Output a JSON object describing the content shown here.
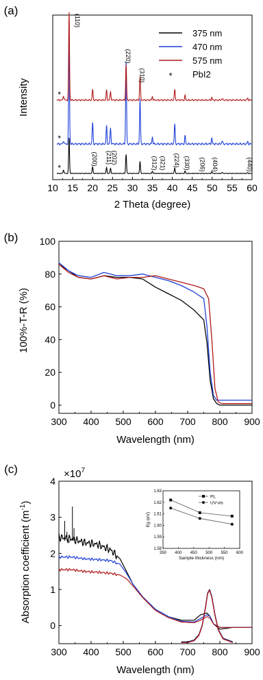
{
  "chart_data": [
    {
      "panel": "(a)",
      "type": "line",
      "xlabel": "2 Theta (degree)",
      "ylabel": "Intensity",
      "xlim": [
        10,
        60
      ],
      "xticks": [
        "10",
        "15",
        "20",
        "25",
        "30",
        "35",
        "40",
        "45",
        "50",
        "55",
        "60"
      ],
      "legend_placement": "top-right",
      "legend": [
        {
          "label": "375 nm",
          "color": "#000000"
        },
        {
          "label": "470 nm",
          "color": "#1f3fd6"
        },
        {
          "label": "575 nm",
          "color": "#b01818"
        },
        {
          "label": "PbI2",
          "marker": "*"
        }
      ],
      "series": [
        {
          "name": "375 nm",
          "color": "#000000",
          "peaks": [
            [
              12.7,
              0.1
            ],
            [
              14.1,
              1.0
            ],
            [
              20.0,
              0.18
            ],
            [
              23.5,
              0.16
            ],
            [
              24.5,
              0.14
            ],
            [
              28.4,
              0.53
            ],
            [
              31.9,
              0.34
            ],
            [
              35.0,
              0.06
            ],
            [
              40.6,
              0.15
            ],
            [
              43.2,
              0.06
            ],
            [
              49.9,
              0.05
            ],
            [
              52.5,
              0.03
            ],
            [
              58.9,
              0.02
            ]
          ]
        },
        {
          "name": "470 nm",
          "color": "#1f3fd6",
          "peaks": [
            [
              12.7,
              0.03
            ],
            [
              14.1,
              1.0
            ],
            [
              20.0,
              0.19
            ],
            [
              23.5,
              0.16
            ],
            [
              24.5,
              0.14
            ],
            [
              28.4,
              0.74
            ],
            [
              31.9,
              0.41
            ],
            [
              35.0,
              0.06
            ],
            [
              40.6,
              0.18
            ],
            [
              43.2,
              0.07
            ],
            [
              49.9,
              0.05
            ],
            [
              52.5,
              0.03
            ],
            [
              58.9,
              0.02
            ]
          ]
        },
        {
          "name": "575 nm",
          "color": "#b01818",
          "peaks": [
            [
              12.7,
              0.05
            ],
            [
              14.1,
              1.0
            ],
            [
              20.0,
              0.12
            ],
            [
              23.5,
              0.11
            ],
            [
              24.5,
              0.09
            ],
            [
              28.4,
              0.4
            ],
            [
              31.9,
              0.27
            ],
            [
              35.0,
              0.04
            ],
            [
              40.6,
              0.12
            ],
            [
              43.2,
              0.05
            ],
            [
              49.9,
              0.03
            ],
            [
              52.5,
              0.02
            ],
            [
              58.9,
              0.02
            ]
          ]
        }
      ],
      "annotations": [
        {
          "text": "(110)",
          "x": 14.1,
          "trace": "575 nm"
        },
        {
          "text": "(220)",
          "x": 28.4,
          "trace": "575 nm"
        },
        {
          "text": "(310)",
          "x": 31.9,
          "trace": "575 nm"
        },
        {
          "text": "(200)",
          "x": 20.0,
          "trace": "375 nm"
        },
        {
          "text": "(211)",
          "x": 23.6,
          "trace": "375 nm"
        },
        {
          "text": "(202)",
          "x": 24.6,
          "trace": "375 nm"
        },
        {
          "text": "(312)",
          "x": 35.0,
          "trace": "375 nm"
        },
        {
          "text": "(321)",
          "x": 36.7,
          "trace": "375 nm"
        },
        {
          "text": "(224)",
          "x": 40.6,
          "trace": "375 nm"
        },
        {
          "text": "(330)",
          "x": 43.2,
          "trace": "375 nm"
        },
        {
          "text": "(206)",
          "x": 47.0,
          "trace": "375 nm"
        },
        {
          "text": "(404)",
          "x": 50.2,
          "trace": "375 nm"
        },
        {
          "text": "(440)",
          "x": 58.9,
          "trace": "375 nm"
        },
        {
          "text": "*",
          "x": 12.7,
          "trace": "375 nm"
        },
        {
          "text": "*",
          "x": 12.7,
          "trace": "470 nm"
        },
        {
          "text": "*",
          "x": 12.7,
          "trace": "575 nm"
        }
      ]
    },
    {
      "panel": "(b)",
      "type": "line",
      "xlabel": "Wavelength (nm)",
      "ylabel": "100%-T-R (%)",
      "xlim": [
        300,
        900
      ],
      "ylim": [
        -5,
        100
      ],
      "xticks": [
        "300",
        "400",
        "500",
        "600",
        "700",
        "800",
        "900"
      ],
      "yticks": [
        "0",
        "20",
        "40",
        "60",
        "80",
        "100"
      ],
      "series": [
        {
          "name": "375 nm",
          "color": "#000000",
          "x": [
            300,
            330,
            360,
            400,
            440,
            480,
            520,
            560,
            600,
            640,
            680,
            720,
            750,
            760,
            770,
            780,
            790,
            800,
            850,
            900
          ],
          "y": [
            86,
            82,
            78,
            77,
            79,
            78,
            78,
            77,
            72,
            68,
            64,
            58,
            52,
            38,
            15,
            4,
            1,
            0,
            0,
            0
          ]
        },
        {
          "name": "470 nm",
          "color": "#1f3fd6",
          "x": [
            300,
            330,
            360,
            400,
            440,
            480,
            520,
            560,
            600,
            640,
            680,
            720,
            750,
            760,
            770,
            780,
            790,
            800,
            850,
            900
          ],
          "y": [
            87,
            82,
            79,
            78,
            81,
            79,
            79,
            80,
            78,
            76,
            73,
            69,
            65,
            48,
            20,
            6,
            3,
            3,
            3,
            3
          ]
        },
        {
          "name": "575 nm",
          "color": "#b01818",
          "x": [
            300,
            330,
            360,
            400,
            440,
            480,
            520,
            560,
            600,
            640,
            680,
            720,
            750,
            765,
            775,
            785,
            795,
            805,
            850,
            900
          ],
          "y": [
            86,
            81,
            78,
            77,
            79,
            77,
            78,
            78,
            79,
            77,
            75,
            73,
            71,
            65,
            40,
            10,
            2,
            1,
            1,
            1
          ]
        }
      ]
    },
    {
      "panel": "(c)",
      "type": "line",
      "xlabel": "Wavelength (nm)",
      "ylabel": "Absorption coefficient (m-1)",
      "multiplier": "×10^7",
      "xlim": [
        300,
        900
      ],
      "ylim": [
        -0.5,
        4
      ],
      "xticks": [
        "300",
        "400",
        "500",
        "600",
        "700",
        "800",
        "900"
      ],
      "yticks": [
        "0",
        "1",
        "2",
        "3",
        "4"
      ],
      "series": [
        {
          "name": "375 nm",
          "color": "#000000",
          "x": [
            300,
            340,
            380,
            420,
            460,
            490,
            510,
            530,
            560,
            600,
            640,
            680,
            720,
            740,
            760,
            770,
            780,
            800,
            840,
            900
          ],
          "y": [
            2.45,
            2.4,
            2.3,
            2.25,
            2.1,
            1.85,
            1.5,
            1.15,
            0.8,
            0.45,
            0.25,
            0.15,
            0.15,
            0.3,
            0.35,
            0.25,
            0.05,
            -0.1,
            -0.05,
            -0.05
          ]
        },
        {
          "name": "470 nm",
          "color": "#1f3fd6",
          "x": [
            300,
            340,
            380,
            420,
            460,
            490,
            510,
            530,
            560,
            600,
            640,
            680,
            720,
            740,
            760,
            770,
            780,
            800,
            840,
            900
          ],
          "y": [
            1.9,
            1.9,
            1.85,
            1.83,
            1.8,
            1.7,
            1.45,
            1.15,
            0.8,
            0.45,
            0.25,
            0.12,
            0.1,
            0.2,
            0.3,
            0.25,
            0.05,
            -0.05,
            -0.05,
            -0.05
          ]
        },
        {
          "name": "575 nm",
          "color": "#b01818",
          "x": [
            300,
            340,
            380,
            420,
            460,
            490,
            510,
            530,
            560,
            600,
            640,
            680,
            720,
            740,
            760,
            770,
            780,
            800,
            840,
            900
          ],
          "y": [
            1.55,
            1.55,
            1.5,
            1.48,
            1.45,
            1.4,
            1.3,
            1.1,
            0.78,
            0.42,
            0.22,
            0.1,
            0.08,
            0.15,
            0.25,
            0.2,
            0.05,
            -0.05,
            -0.05,
            -0.05
          ]
        },
        {
          "name": "PL",
          "color": "#b01818",
          "x": [
            680,
            700,
            720,
            735,
            745,
            755,
            762,
            768,
            775,
            785,
            795,
            810,
            840
          ],
          "y": [
            -0.45,
            -0.45,
            -0.4,
            -0.25,
            0.0,
            0.5,
            0.9,
            1.0,
            0.8,
            0.3,
            -0.1,
            -0.35,
            -0.45
          ]
        }
      ],
      "inset": {
        "type": "line",
        "xlabel": "Sample thickness (nm)",
        "ylabel": "Eg (eV)",
        "xlim": [
          350,
          600
        ],
        "ylim": [
          1.58,
          1.63
        ],
        "xticks": [
          "350",
          "400",
          "450",
          "500",
          "550",
          "600"
        ],
        "yticks": [
          "1.58",
          "1.59",
          "1.60",
          "1.61",
          "1.62",
          "1.63"
        ],
        "legend": [
          "PL",
          "UV-vis"
        ],
        "series": [
          {
            "name": "PL",
            "marker": "square",
            "x": [
              375,
              470,
              575
            ],
            "y": [
              1.622,
              1.611,
              1.608
            ]
          },
          {
            "name": "UV-vis",
            "marker": "circle",
            "x": [
              375,
              470,
              575
            ],
            "y": [
              1.615,
              1.606,
              1.601
            ]
          }
        ]
      }
    }
  ]
}
